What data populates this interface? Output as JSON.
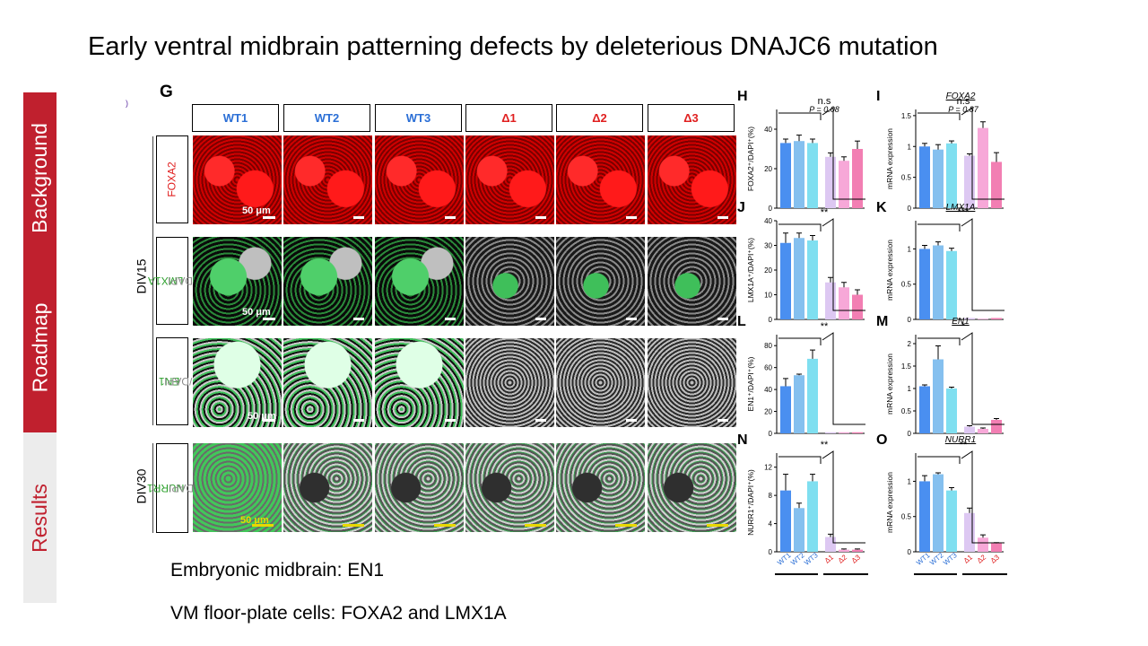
{
  "slide": {
    "title": "Early ventral midbrain patterning defects by deleterious DNAJC6 mutation"
  },
  "sidebar": {
    "tabs": [
      "Background",
      "Roadmap",
      "Results"
    ]
  },
  "figure": {
    "letter": "G",
    "columns": [
      "WT1",
      "WT2",
      "WT3",
      "Δ1",
      "Δ2",
      "Δ3"
    ],
    "rows": [
      {
        "marker": "FOXA2",
        "counter": ""
      },
      {
        "marker": "LMX1A",
        "counter": "/DAPI"
      },
      {
        "marker": "EN1",
        "counter": "/DAPI"
      },
      {
        "marker": "NURR1",
        "counter": "/DAPI"
      }
    ],
    "stages": [
      "DIV15",
      "DIV30"
    ],
    "scale": "50 μm",
    "colors": {
      "wt": "#2b6fd6",
      "mutant": "#e02020",
      "foxa2": "#e01010",
      "green": "#2ca02c"
    }
  },
  "panels": [
    {
      "letter": "H",
      "ylabel": "FOXA2⁺/DAPI⁺(%)",
      "sig": "n.s",
      "sig2": "P = 0.08",
      "ylim": [
        0,
        50
      ],
      "ticks": [
        "0",
        "20",
        "40"
      ]
    },
    {
      "letter": "I",
      "gene": "FOXA2",
      "ylabel": "mRNA expression",
      "sig": "n.s",
      "sig2": "P = 0.87",
      "ylim": [
        0,
        1.6
      ],
      "ticks": [
        "0",
        "0.5",
        "1",
        "1.5"
      ]
    },
    {
      "letter": "J",
      "ylabel": "LMX1A⁺/DAPI⁺(%)",
      "sig": "**",
      "ylim": [
        0,
        40
      ],
      "ticks": [
        "0",
        "10",
        "20",
        "30",
        "40"
      ]
    },
    {
      "letter": "K",
      "gene": "LMX1A",
      "ylabel": "mRNA expression",
      "sig": "***",
      "ylim": [
        0,
        1.4
      ],
      "ticks": [
        "0",
        "0.5",
        "1"
      ]
    },
    {
      "letter": "L",
      "ylabel": "EN1⁺/DAPI⁺(%)",
      "sig": "**",
      "ylim": [
        0,
        90
      ],
      "ticks": [
        "0",
        "20",
        "40",
        "60",
        "80"
      ]
    },
    {
      "letter": "M",
      "gene": "EN1",
      "ylabel": "mRNA expression",
      "sig": "*",
      "ylim": [
        0,
        2.2
      ],
      "ticks": [
        "0",
        "0.5",
        "1",
        "1.5",
        "2"
      ]
    },
    {
      "letter": "N",
      "ylabel": "NURR1⁺/DAPI⁺(%)",
      "sig": "**",
      "ylim": [
        0,
        14
      ],
      "ticks": [
        "0",
        "4",
        "8",
        "12"
      ]
    },
    {
      "letter": "O",
      "gene": "NURR1",
      "ylabel": "mRNA expression",
      "sig": "**",
      "ylim": [
        0,
        1.4
      ],
      "ticks": [
        "0",
        "0.5",
        "1"
      ]
    }
  ],
  "categories": [
    "WT1",
    "WT2",
    "WT3",
    "Δ1",
    "Δ2",
    "Δ3"
  ],
  "bar_colors": [
    "#4a8ff0",
    "#85c0ef",
    "#7fdff0",
    "#ddc8f2",
    "#f7a8d8",
    "#f27fb3"
  ],
  "chart_data": [
    {
      "type": "bar",
      "panel": "H",
      "categories": [
        "WT1",
        "WT2",
        "WT3",
        "Δ1",
        "Δ2",
        "Δ3"
      ],
      "values": [
        33,
        34,
        33,
        26,
        24,
        30
      ],
      "errors": [
        2,
        3,
        2,
        2,
        2,
        4
      ],
      "ylim": [
        0,
        50
      ]
    },
    {
      "type": "bar",
      "panel": "I",
      "categories": [
        "WT1",
        "WT2",
        "WT3",
        "Δ1",
        "Δ2",
        "Δ3"
      ],
      "values": [
        1.0,
        0.95,
        1.05,
        0.85,
        1.3,
        0.75
      ],
      "errors": [
        0.05,
        0.08,
        0.04,
        0.03,
        0.1,
        0.15
      ],
      "ylim": [
        0,
        1.6
      ]
    },
    {
      "type": "bar",
      "panel": "J",
      "categories": [
        "WT1",
        "WT2",
        "WT3",
        "Δ1",
        "Δ2",
        "Δ3"
      ],
      "values": [
        31,
        33,
        32,
        15,
        13,
        10
      ],
      "errors": [
        4,
        2,
        2,
        2,
        2,
        2
      ],
      "ylim": [
        0,
        40
      ]
    },
    {
      "type": "bar",
      "panel": "K",
      "categories": [
        "WT1",
        "WT2",
        "WT3",
        "Δ1",
        "Δ2",
        "Δ3"
      ],
      "values": [
        1.0,
        1.05,
        0.97,
        0.02,
        0.01,
        0.02
      ],
      "errors": [
        0.05,
        0.05,
        0.04,
        0.0,
        0.0,
        0.0
      ],
      "ylim": [
        0,
        1.4
      ]
    },
    {
      "type": "bar",
      "panel": "L",
      "categories": [
        "WT1",
        "WT2",
        "WT3",
        "Δ1",
        "Δ2",
        "Δ3"
      ],
      "values": [
        43,
        53,
        68,
        1,
        1,
        1
      ],
      "errors": [
        7,
        1,
        8,
        0,
        0,
        0
      ],
      "ylim": [
        0,
        90
      ]
    },
    {
      "type": "bar",
      "panel": "M",
      "categories": [
        "WT1",
        "WT2",
        "WT3",
        "Δ1",
        "Δ2",
        "Δ3"
      ],
      "values": [
        1.05,
        1.65,
        1.0,
        0.15,
        0.1,
        0.3
      ],
      "errors": [
        0.03,
        0.3,
        0.03,
        0.02,
        0.02,
        0.03
      ],
      "ylim": [
        0,
        2.2
      ]
    },
    {
      "type": "bar",
      "panel": "N",
      "categories": [
        "WT1",
        "WT2",
        "WT3",
        "Δ1",
        "Δ2",
        "Δ3"
      ],
      "values": [
        8.7,
        6.2,
        10,
        2.1,
        0.3,
        0.3
      ],
      "errors": [
        2.3,
        0.7,
        1,
        0.4,
        0.1,
        0.1
      ],
      "ylim": [
        0,
        14
      ]
    },
    {
      "type": "bar",
      "panel": "O",
      "categories": [
        "WT1",
        "WT2",
        "WT3",
        "Δ1",
        "Δ2",
        "Δ3"
      ],
      "values": [
        1.0,
        1.1,
        0.87,
        0.55,
        0.2,
        0.12
      ],
      "errors": [
        0.08,
        0.02,
        0.04,
        0.07,
        0.04,
        0.01
      ],
      "ylim": [
        0,
        1.4
      ]
    }
  ],
  "notes": [
    "Embryonic midbrain: EN1",
    "VM floor-plate cells: FOXA2 and LMX1A"
  ]
}
